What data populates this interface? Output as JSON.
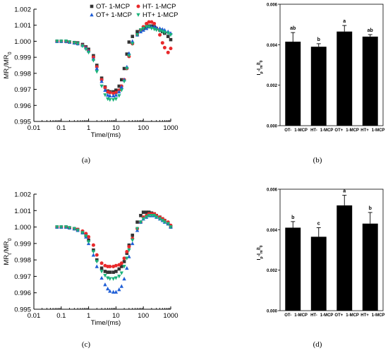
{
  "panel_labels": [
    "(a)",
    "(b)",
    "(c)",
    "(d)"
  ],
  "chart_data": [
    {
      "type": "scatter",
      "panel": "(a)",
      "xlabel": "Time/(ms)",
      "ylabel": "MR_t/MR_0",
      "xscale": "log",
      "xlim": [
        0.01,
        1000
      ],
      "ylim": [
        0.995,
        1.002
      ],
      "xticks": [
        "0.01",
        "0.1",
        "1",
        "10",
        "100",
        "1000"
      ],
      "yticks": [
        "0.995",
        "0.996",
        "0.997",
        "0.998",
        "0.999",
        "1.000",
        "1.001",
        "1.002"
      ],
      "legend_position": "top",
      "legend": [
        "OT-  1-MCP",
        "HT-  1-MCP",
        "OT+ 1-MCP",
        "HT+ 1-MCP"
      ],
      "series": [
        {
          "name": "OT-  1-MCP",
          "marker": "square",
          "color": "#333333",
          "x": [
            0.07,
            0.1,
            0.15,
            0.2,
            0.3,
            0.4,
            0.6,
            0.8,
            1.0,
            1.5,
            2,
            3,
            4,
            5,
            6,
            8,
            10,
            13,
            16,
            20,
            25,
            30,
            40,
            60,
            80,
            100,
            130,
            160,
            200,
            250,
            300,
            400,
            500,
            600,
            800,
            1000
          ],
          "y": [
            1.0,
            1.0,
            1.0,
            0.99995,
            0.99992,
            0.9999,
            0.9998,
            0.99965,
            0.9995,
            0.9991,
            0.9985,
            0.9977,
            0.99715,
            0.9969,
            0.99685,
            0.99685,
            0.99695,
            0.9972,
            0.9976,
            0.9983,
            0.9992,
            0.99995,
            1.0003,
            1.0006,
            1.0007,
            1.0008,
            1.0009,
            1.00095,
            1.00095,
            1.0009,
            1.0008,
            1.0007,
            1.0006,
            1.0005,
            1.0003,
            1.0001
          ]
        },
        {
          "name": "HT-  1-MCP",
          "marker": "circle",
          "color": "#e8292b",
          "x": [
            0.07,
            0.1,
            0.15,
            0.2,
            0.3,
            0.4,
            0.6,
            0.8,
            1.0,
            1.5,
            2,
            3,
            4,
            5,
            6,
            8,
            10,
            13,
            16,
            20,
            25,
            30,
            40,
            60,
            80,
            100,
            130,
            160,
            200,
            250,
            300,
            400,
            500,
            600,
            800,
            1000
          ],
          "y": [
            1.0,
            1.0,
            0.99998,
            0.99995,
            0.9999,
            0.99985,
            0.99975,
            0.9996,
            0.9994,
            0.999,
            0.9984,
            0.9976,
            0.9971,
            0.99685,
            0.9968,
            0.99675,
            0.9968,
            0.99695,
            0.9972,
            0.9976,
            0.9983,
            0.99905,
            0.99985,
            1.0004,
            1.0007,
            1.0009,
            1.0011,
            1.0012,
            1.0012,
            1.0011,
            1.0008,
            1.0004,
            0.9999,
            0.9996,
            0.9993,
            0.99955
          ]
        },
        {
          "name": "OT+ 1-MCP",
          "marker": "triangle-up",
          "color": "#1f5ed6",
          "x": [
            0.07,
            0.1,
            0.15,
            0.2,
            0.3,
            0.4,
            0.6,
            0.8,
            1.0,
            1.5,
            2,
            3,
            4,
            5,
            6,
            8,
            10,
            13,
            16,
            20,
            25,
            30,
            40,
            60,
            80,
            100,
            130,
            160,
            200,
            250,
            300,
            400,
            500,
            600,
            800,
            1000
          ],
          "y": [
            1.0,
            1.0,
            1.0,
            0.99995,
            0.9999,
            0.99985,
            0.99975,
            0.9996,
            0.9994,
            0.9989,
            0.9983,
            0.9975,
            0.99695,
            0.99665,
            0.9966,
            0.9966,
            0.99665,
            0.99685,
            0.99715,
            0.9976,
            0.9984,
            0.99925,
            1.0,
            1.0004,
            1.0006,
            1.0007,
            1.0008,
            1.0009,
            1.0009,
            1.0009,
            1.00085,
            1.0008,
            1.00075,
            1.0007,
            1.0006,
            1.0005
          ]
        },
        {
          "name": "HT+ 1-MCP",
          "marker": "triangle-down",
          "color": "#1ab37a",
          "x": [
            0.07,
            0.1,
            0.15,
            0.2,
            0.3,
            0.4,
            0.6,
            0.8,
            1.0,
            1.5,
            2,
            3,
            4,
            5,
            6,
            8,
            10,
            13,
            16,
            20,
            25,
            30,
            40,
            60,
            80,
            100,
            130,
            160,
            200,
            250,
            300,
            400,
            500,
            600,
            800,
            1000
          ],
          "y": [
            1.0,
            1.0,
            1.0,
            0.99995,
            0.9999,
            0.99985,
            0.9997,
            0.9995,
            0.9993,
            0.9988,
            0.9981,
            0.9972,
            0.99665,
            0.9964,
            0.99635,
            0.99635,
            0.9964,
            0.9966,
            0.99695,
            0.9975,
            0.9983,
            0.9991,
            0.99985,
            1.0004,
            1.0007,
            1.0008,
            1.0009,
            1.0009,
            1.0008,
            1.00075,
            1.0007,
            1.00065,
            1.0006,
            1.00055,
            1.0005,
            1.0004
          ]
        }
      ]
    },
    {
      "type": "bar",
      "panel": "(b)",
      "ylabel": "I_p-I_m/I_0",
      "ylim": [
        0.0,
        0.006
      ],
      "yticks": [
        "0.000",
        "0.002",
        "0.004",
        "0.006"
      ],
      "categories": [
        "OT-  1-MCP",
        "HT-  1-MCP",
        "OT+ 1-MCP",
        "HT+ 1-MCP"
      ],
      "values": [
        0.00415,
        0.0039,
        0.00465,
        0.0044
      ],
      "errors": [
        0.00045,
        0.00015,
        0.0003,
        0.0001
      ],
      "letters": [
        "ab",
        "b",
        "a",
        "ab"
      ]
    },
    {
      "type": "scatter",
      "panel": "(c)",
      "xlabel": "Time/(ms)",
      "ylabel": "MR_t/MR_0",
      "xscale": "log",
      "xlim": [
        0.01,
        1000
      ],
      "ylim": [
        0.995,
        1.002
      ],
      "xticks": [
        "0.01",
        "0.1",
        "1",
        "10",
        "100",
        "1000"
      ],
      "yticks": [
        "0.995",
        "0.996",
        "0.997",
        "0.998",
        "0.999",
        "1.000",
        "1.001",
        "1.002"
      ],
      "series": [
        {
          "name": "OT-  1-MCP",
          "marker": "square",
          "color": "#333333",
          "x": [
            0.07,
            0.1,
            0.15,
            0.2,
            0.3,
            0.4,
            0.6,
            0.8,
            1.0,
            1.5,
            2,
            3,
            4,
            5,
            6,
            8,
            10,
            13,
            16,
            20,
            25,
            30,
            40,
            60,
            80,
            100,
            130,
            160,
            200,
            250,
            300,
            400,
            500,
            600,
            800,
            1000
          ],
          "y": [
            1.0,
            1.0,
            1.0,
            0.99995,
            0.9999,
            0.99985,
            0.9997,
            0.9995,
            0.9992,
            0.9986,
            0.998,
            0.9975,
            0.9973,
            0.99725,
            0.99725,
            0.99725,
            0.9973,
            0.99745,
            0.9976,
            0.9979,
            0.9984,
            0.9989,
            0.9995,
            1.0003,
            1.0007,
            1.0009,
            1.0009,
            1.0009,
            1.00085,
            1.0008,
            1.0007,
            1.0006,
            1.0005,
            1.0004,
            1.0002,
            1.0
          ]
        },
        {
          "name": "HT-  1-MCP",
          "marker": "circle",
          "color": "#e8292b",
          "x": [
            0.07,
            0.1,
            0.15,
            0.2,
            0.3,
            0.4,
            0.6,
            0.8,
            1.0,
            1.5,
            2,
            3,
            4,
            5,
            6,
            8,
            10,
            13,
            16,
            20,
            25,
            30,
            40,
            60,
            80,
            100,
            130,
            160,
            200,
            250,
            300,
            400,
            500,
            600,
            800,
            1000
          ],
          "y": [
            1.0,
            1.0,
            1.0,
            0.99995,
            0.9999,
            0.99985,
            0.99975,
            0.9996,
            0.9994,
            0.9989,
            0.9983,
            0.9978,
            0.99765,
            0.9976,
            0.9976,
            0.9976,
            0.99765,
            0.9977,
            0.9978,
            0.9981,
            0.9985,
            0.9988,
            0.9993,
            0.9999,
            1.0003,
            1.0006,
            1.0007,
            1.0008,
            1.0008,
            1.0008,
            1.0007,
            1.0006,
            1.0005,
            1.0004,
            1.0003,
            1.0001
          ]
        },
        {
          "name": "OT+ 1-MCP",
          "marker": "triangle-up",
          "color": "#1f5ed6",
          "x": [
            0.07,
            0.1,
            0.15,
            0.2,
            0.3,
            0.4,
            0.6,
            0.8,
            1.0,
            1.5,
            2,
            3,
            4,
            5,
            6,
            8,
            10,
            13,
            16,
            20,
            25,
            30,
            40,
            60,
            80,
            100,
            130,
            160,
            200,
            250,
            300,
            400,
            500,
            600,
            800,
            1000
          ],
          "y": [
            1.0,
            1.0,
            1.0,
            0.99995,
            0.9999,
            0.9998,
            0.99965,
            0.9994,
            0.999,
            0.9983,
            0.9976,
            0.9969,
            0.9965,
            0.99625,
            0.9961,
            0.99605,
            0.99605,
            0.9962,
            0.9964,
            0.99685,
            0.9975,
            0.9982,
            0.999,
            0.9998,
            1.0003,
            1.0005,
            1.0006,
            1.0007,
            1.0007,
            1.0007,
            1.0006,
            1.0005,
            1.0004,
            1.0003,
            1.0002,
            1.0
          ]
        },
        {
          "name": "HT+ 1-MCP",
          "marker": "triangle-down",
          "color": "#1ab37a",
          "x": [
            0.07,
            0.1,
            0.15,
            0.2,
            0.3,
            0.4,
            0.6,
            0.8,
            1.0,
            1.5,
            2,
            3,
            4,
            5,
            6,
            8,
            10,
            13,
            16,
            20,
            25,
            30,
            40,
            60,
            80,
            100,
            130,
            160,
            200,
            250,
            300,
            400,
            500,
            600,
            800,
            1000
          ],
          "y": [
            1.0,
            1.0,
            1.0,
            0.99995,
            0.9999,
            0.9998,
            0.99965,
            0.99945,
            0.9991,
            0.9985,
            0.9979,
            0.9973,
            0.99705,
            0.9969,
            0.99685,
            0.99685,
            0.9969,
            0.997,
            0.9972,
            0.9976,
            0.9981,
            0.9986,
            0.9992,
            0.9999,
            1.0003,
            1.0005,
            1.0006,
            1.0007,
            1.0007,
            1.0007,
            1.0006,
            1.0005,
            1.0004,
            1.0003,
            1.0002,
            1.0
          ]
        }
      ]
    },
    {
      "type": "bar",
      "panel": "(d)",
      "ylabel": "I_p-I_m/I_0",
      "ylim": [
        0.0,
        0.006
      ],
      "yticks": [
        "0.000",
        "0.002",
        "0.004",
        "0.006"
      ],
      "categories": [
        "OT-  1-MCP",
        "HT-  1-MCP",
        "OT+ 1-MCP",
        "HT+ 1-MCP"
      ],
      "values": [
        0.0041,
        0.00365,
        0.0052,
        0.0043
      ],
      "errors": [
        0.0003,
        0.00045,
        0.0005,
        0.00055
      ],
      "letters": [
        "b",
        "c",
        "a",
        "b"
      ]
    }
  ]
}
